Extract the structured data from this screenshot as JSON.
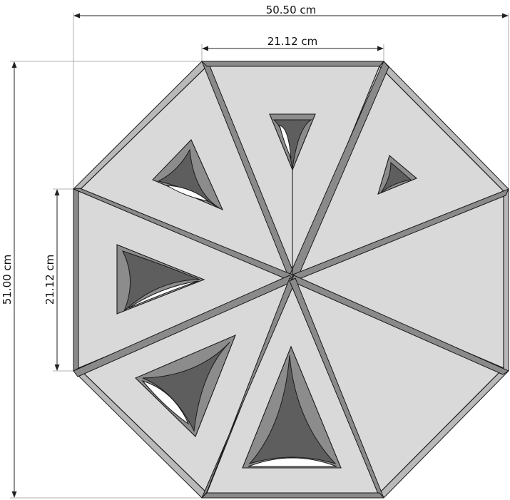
{
  "dimensions": {
    "overall_width": "50.50 cm",
    "top_edge_width": "21.12 cm",
    "overall_height": "51.00 cm",
    "left_edge_height": "21.12 cm"
  },
  "colors": {
    "face": "#d9d9d9",
    "outline": "#1a1a1a",
    "shadow": "#5e5e5e"
  }
}
